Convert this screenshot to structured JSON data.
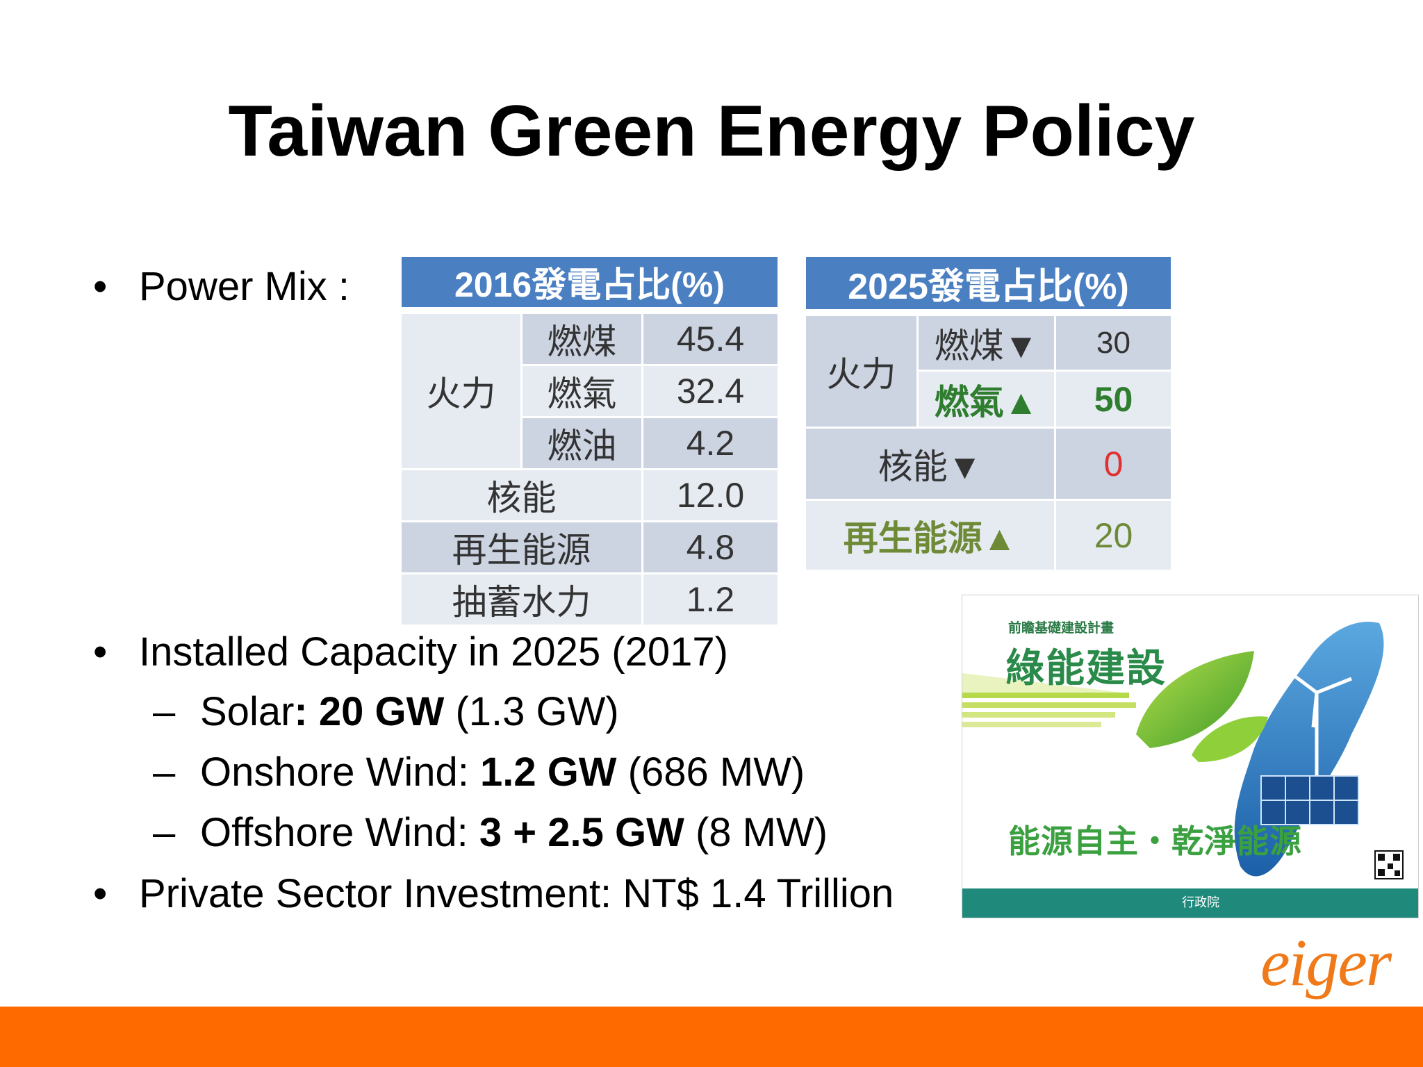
{
  "slide": {
    "title": "Taiwan Green Energy Policy",
    "bullet_dot": "•",
    "sub_dash": "–",
    "power_mix": {
      "label": "Power Mix :"
    },
    "installed": {
      "label": "Installed Capacity in 2025 (2017)",
      "items": [
        {
          "name": "Solar",
          "sep": ": ",
          "target": "20 GW",
          "current": " (1.3 GW)"
        },
        {
          "name": "Onshore Wind: ",
          "sep": "",
          "target": "1.2 GW",
          "current": " (686 MW)"
        },
        {
          "name": "Offshore Wind: ",
          "sep": "",
          "target": "3 + 2.5 GW",
          "current": " (8 MW)"
        }
      ]
    },
    "investment": {
      "label": "Private Sector Investment: NT$ 1.4 Trillion"
    }
  },
  "table_2016": {
    "header": "2016發電占比(%)",
    "group": "火力",
    "rows": [
      {
        "label": "燃煤",
        "value": "45.4"
      },
      {
        "label": "燃氣",
        "value": "32.4"
      },
      {
        "label": "燃油",
        "value": "4.2"
      },
      {
        "label": "核能",
        "value": "12.0"
      },
      {
        "label": "再生能源",
        "value": "4.8"
      },
      {
        "label": "抽蓄水力",
        "value": "1.2"
      }
    ]
  },
  "table_2025": {
    "header": "2025發電占比(%)",
    "group": "火力",
    "rows": [
      {
        "label": "燃煤▼",
        "value": "30"
      },
      {
        "label": "燃氣▲",
        "value": "50"
      },
      {
        "label": "核能▼",
        "value": "0"
      },
      {
        "label": "再生能源▲",
        "value": "20"
      }
    ]
  },
  "poster": {
    "kicker": "前瞻基礎建設計畫",
    "headline": "綠能建設",
    "slogan": "能源自主・乾淨能源",
    "footer": "行政院"
  },
  "logo": {
    "text": "eiger"
  },
  "colors": {
    "table_header": "#4a7fc1",
    "footer_bar": "#ff6a00",
    "logo": "#f07a1a",
    "green": "#2f7d2f"
  }
}
